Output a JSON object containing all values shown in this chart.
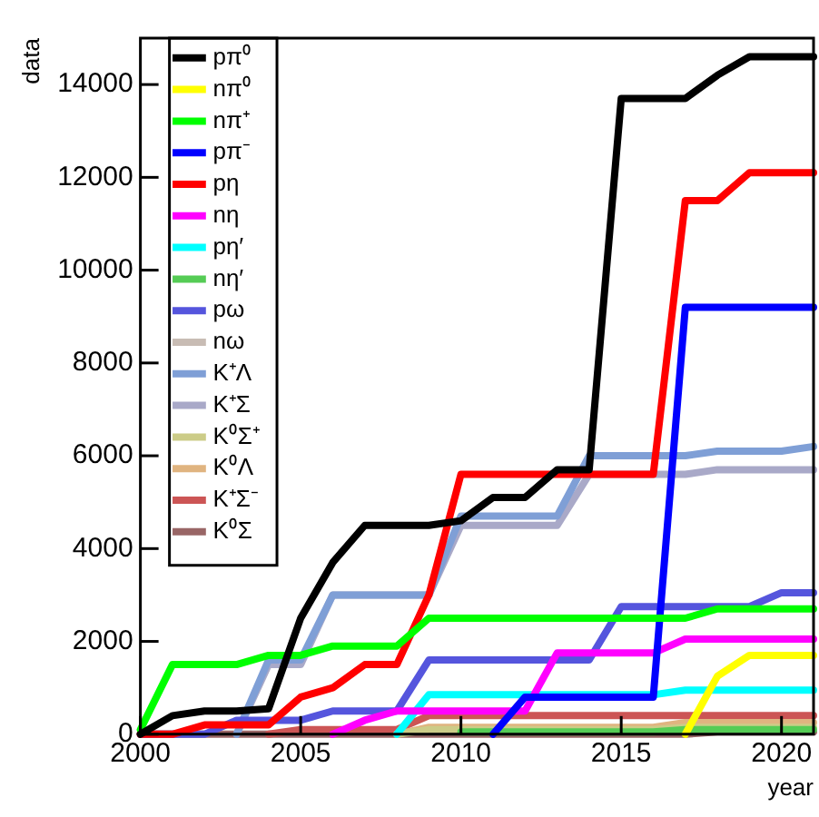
{
  "chart_data": {
    "type": "line",
    "xlabel": "year",
    "ylabel": "data",
    "x": [
      2000,
      2001,
      2002,
      2003,
      2004,
      2005,
      2006,
      2007,
      2008,
      2009,
      2010,
      2011,
      2012,
      2013,
      2014,
      2015,
      2016,
      2017,
      2018,
      2019,
      2020,
      2021
    ],
    "series": [
      {
        "name": "pπ⁰",
        "color": "#000000",
        "values": [
          0,
          400,
          500,
          500,
          550,
          2500,
          3700,
          4500,
          4500,
          4500,
          4600,
          5100,
          5100,
          5700,
          5700,
          13700,
          13700,
          13700,
          14200,
          14600,
          14600,
          14600
        ]
      },
      {
        "name": "nπ⁰",
        "color": "#ffff00",
        "values": [
          null,
          null,
          null,
          null,
          null,
          null,
          null,
          null,
          null,
          null,
          null,
          null,
          null,
          null,
          null,
          null,
          null,
          0,
          1250,
          1700,
          1700,
          1700
        ]
      },
      {
        "name": "nπ⁺",
        "color": "#00ff00",
        "values": [
          100,
          1500,
          1500,
          1500,
          1700,
          1700,
          1900,
          1900,
          1900,
          2500,
          2500,
          2500,
          2500,
          2500,
          2500,
          2500,
          2500,
          2500,
          2700,
          2700,
          2700,
          2700
        ]
      },
      {
        "name": "pπ⁻",
        "color": "#0000ff",
        "values": [
          null,
          null,
          null,
          null,
          null,
          null,
          null,
          null,
          null,
          null,
          null,
          0,
          800,
          800,
          800,
          800,
          800,
          9200,
          9200,
          9200,
          9200,
          9200
        ]
      },
      {
        "name": "pη",
        "color": "#ff0000",
        "values": [
          0,
          0,
          200,
          200,
          200,
          800,
          1000,
          1500,
          1500,
          3000,
          5600,
          5600,
          5600,
          5600,
          5600,
          5600,
          5600,
          11500,
          11500,
          12100,
          12100,
          12100
        ]
      },
      {
        "name": "nη",
        "color": "#ff00ff",
        "values": [
          null,
          null,
          null,
          null,
          null,
          null,
          0,
          300,
          500,
          500,
          500,
          500,
          500,
          1750,
          1750,
          1750,
          1750,
          2050,
          2050,
          2050,
          2050,
          2050
        ]
      },
      {
        "name": "pη′",
        "color": "#00ffff",
        "values": [
          null,
          null,
          null,
          null,
          null,
          null,
          null,
          null,
          0,
          850,
          850,
          850,
          850,
          850,
          850,
          850,
          850,
          950,
          950,
          950,
          950,
          950
        ]
      },
      {
        "name": "nη′",
        "color": "#55cc55",
        "values": [
          null,
          null,
          null,
          null,
          null,
          null,
          null,
          null,
          null,
          null,
          50,
          50,
          50,
          50,
          50,
          50,
          50,
          100,
          100,
          100,
          100,
          100
        ]
      },
      {
        "name": "pω",
        "color": "#5555dd",
        "values": [
          0,
          0,
          0,
          300,
          300,
          300,
          500,
          500,
          500,
          1600,
          1600,
          1600,
          1600,
          1600,
          1600,
          2750,
          2750,
          2750,
          2750,
          2750,
          3050,
          3050
        ]
      },
      {
        "name": "nω",
        "color": "#c8bcb4",
        "values": [
          null,
          null,
          null,
          null,
          null,
          null,
          null,
          null,
          null,
          null,
          null,
          null,
          null,
          null,
          null,
          null,
          null,
          null,
          null,
          null,
          null,
          null
        ]
      },
      {
        "name": "K⁺Λ",
        "color": "#7f9fd6",
        "values": [
          null,
          null,
          null,
          0,
          1600,
          1600,
          3000,
          3000,
          3000,
          3000,
          4700,
          4700,
          4700,
          4700,
          6000,
          6000,
          6000,
          6000,
          6100,
          6100,
          6100,
          6200
        ]
      },
      {
        "name": "K⁺Σ",
        "color": "#a9a9c8",
        "values": [
          null,
          null,
          null,
          0,
          1500,
          1500,
          3000,
          3000,
          3000,
          3000,
          4500,
          4500,
          4500,
          4500,
          5600,
          5600,
          5600,
          5600,
          5700,
          5700,
          5700,
          5700
        ]
      },
      {
        "name": "K⁰Σ⁺",
        "color": "#cccc88",
        "values": [
          null,
          null,
          null,
          null,
          null,
          null,
          null,
          null,
          0,
          100,
          100,
          100,
          100,
          100,
          100,
          100,
          100,
          150,
          150,
          150,
          150,
          150
        ]
      },
      {
        "name": "K⁰Λ",
        "color": "#e0b480",
        "values": [
          null,
          null,
          null,
          null,
          null,
          null,
          null,
          null,
          0,
          150,
          150,
          150,
          150,
          150,
          150,
          150,
          150,
          250,
          250,
          250,
          250,
          250
        ]
      },
      {
        "name": "K⁺Σ⁻",
        "color": "#cc5555",
        "values": [
          null,
          null,
          null,
          null,
          0,
          100,
          100,
          100,
          100,
          400,
          400,
          400,
          400,
          400,
          400,
          400,
          400,
          400,
          400,
          400,
          400,
          400
        ]
      },
      {
        "name": "K⁰Σ",
        "color": "#996666",
        "values": [
          0,
          0,
          0,
          0,
          0,
          0,
          0,
          0,
          0,
          0,
          0,
          0,
          0,
          0,
          0,
          0,
          0,
          0,
          50,
          50,
          50,
          50
        ]
      }
    ],
    "xlim": [
      2000,
      2021
    ],
    "xticks": [
      2000,
      2005,
      2010,
      2015,
      2020
    ],
    "ylim": [
      0,
      15000
    ],
    "yticks": [
      0,
      2000,
      4000,
      6000,
      8000,
      10000,
      12000,
      14000
    ],
    "grid": false,
    "legend": "top left",
    "marker": "none",
    "line_style": "solid"
  }
}
